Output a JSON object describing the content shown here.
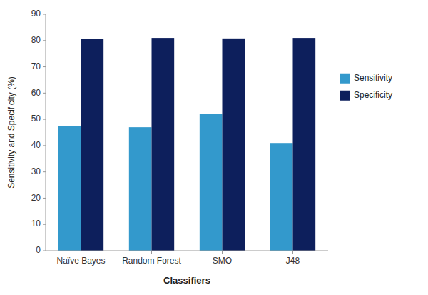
{
  "chart_data": {
    "type": "bar",
    "categories": [
      "Naïve Bayes",
      "Random Forest",
      "SMO",
      "J48"
    ],
    "series": [
      {
        "name": "Sensitivity",
        "color": "#3399CC",
        "values": [
          47.5,
          47.0,
          52.0,
          41.0
        ]
      },
      {
        "name": "Specificity",
        "color": "#0D1F5C",
        "values": [
          80.5,
          81.0,
          80.8,
          81.0
        ]
      }
    ],
    "xlabel": "Classifiers",
    "ylabel": "Sensitivity and Specificity (%)",
    "ylim": [
      0,
      90
    ],
    "yticks": [
      0,
      10,
      20,
      30,
      40,
      50,
      60,
      70,
      80,
      90
    ],
    "legend": "right",
    "grid": false
  }
}
